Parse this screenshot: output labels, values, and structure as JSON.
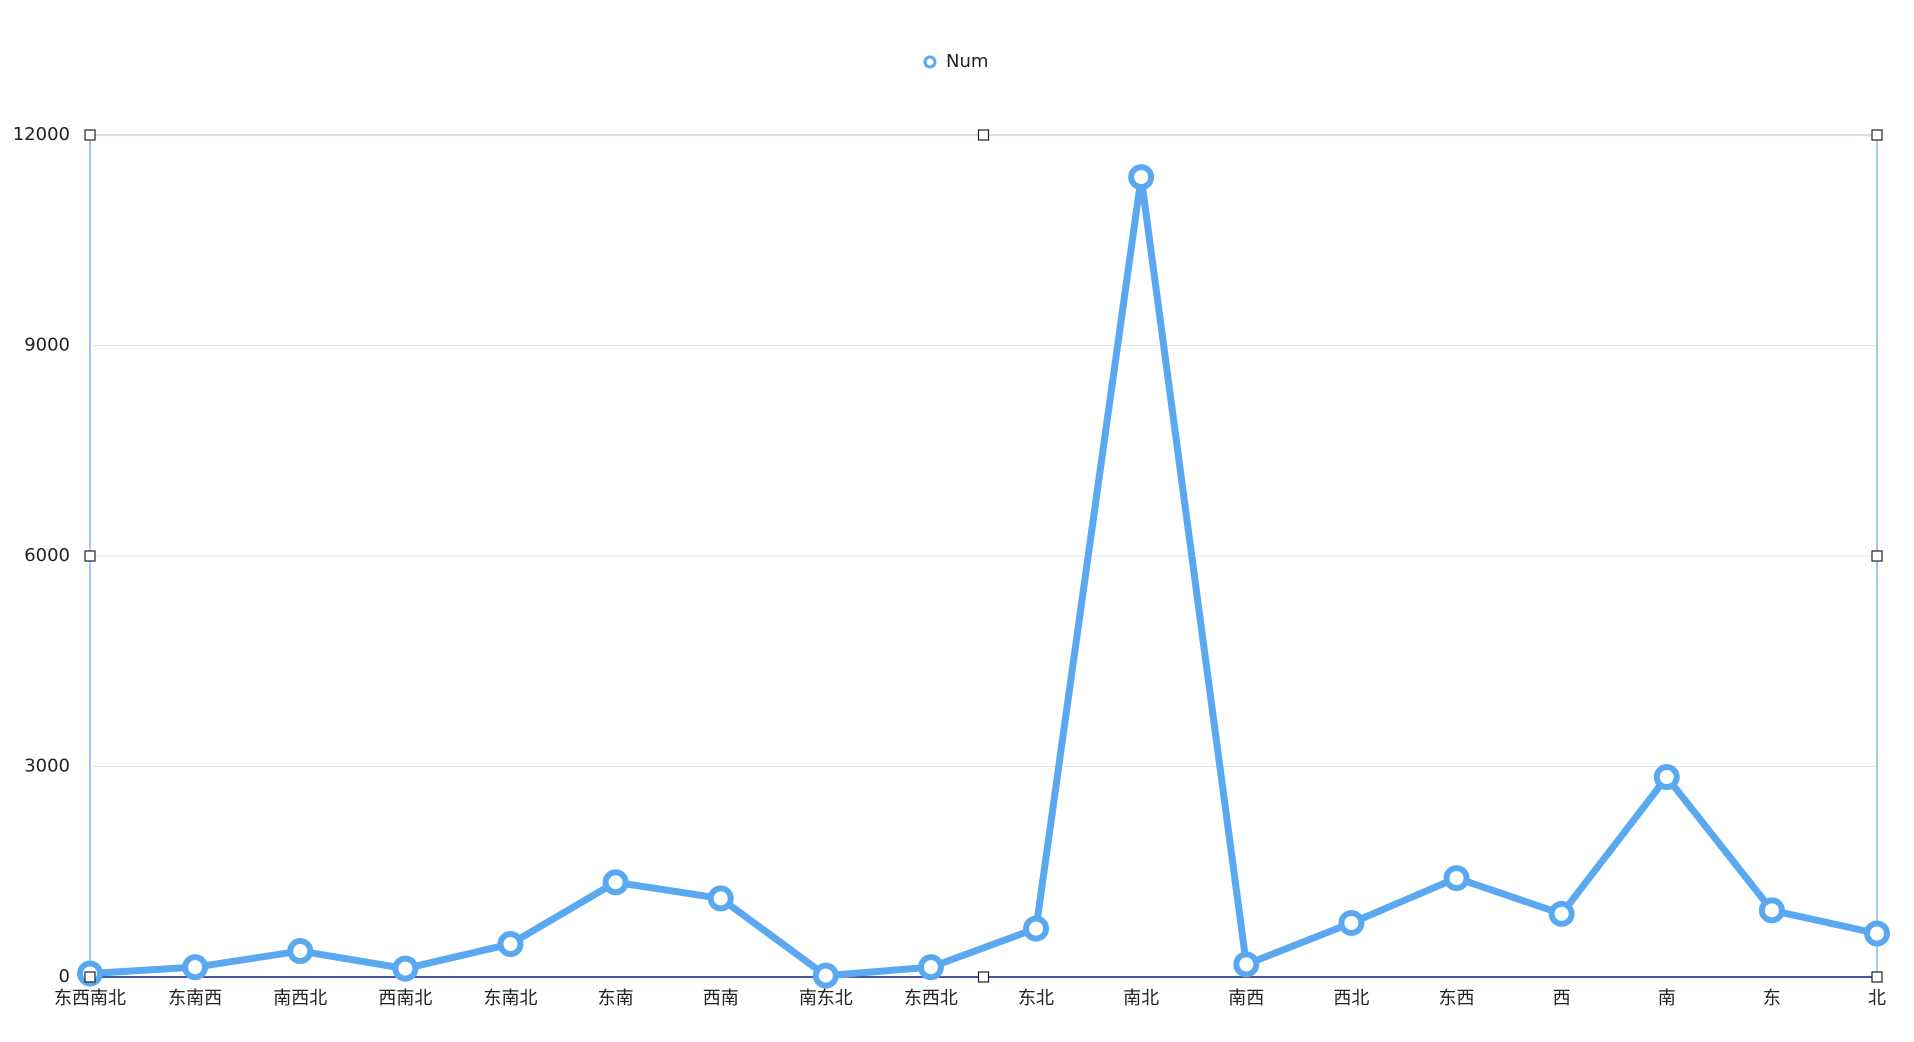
{
  "chart_data": {
    "type": "line",
    "categories": [
      "东西南北",
      "东南西",
      "南西北",
      "西南北",
      "东南北",
      "东南",
      "西南",
      "南东北",
      "东西北",
      "东北",
      "南北",
      "南西",
      "西北",
      "东西",
      "西",
      "南",
      "东",
      "北"
    ],
    "series": [
      {
        "name": "Num",
        "color": "#5aa9f0",
        "values": [
          50,
          140,
          370,
          120,
          470,
          1350,
          1120,
          20,
          140,
          690,
          11400,
          180,
          770,
          1410,
          900,
          2850,
          950,
          620
        ]
      }
    ],
    "ylim": [
      0,
      12000
    ],
    "yticks": [
      0,
      3000,
      6000,
      9000,
      12000
    ],
    "grid": true
  }
}
